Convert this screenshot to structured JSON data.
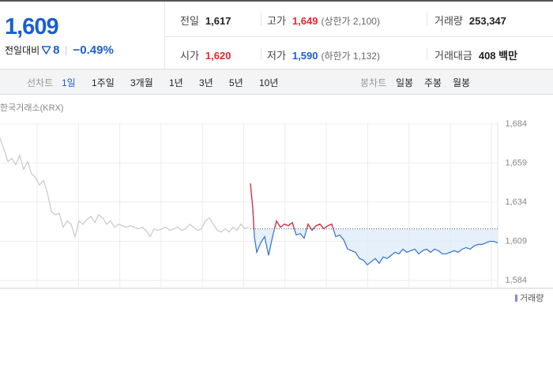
{
  "quote": {
    "price": "1,609",
    "change_label": "전일대비",
    "change": "8",
    "change_pct": "−0.49%"
  },
  "stats": [
    {
      "label": "전일",
      "value": "1,617"
    },
    {
      "label": "고가",
      "value": "1,649",
      "note": "(상한가 2,100)"
    },
    {
      "label": "거래량",
      "value": "253,347"
    },
    {
      "label": "시가",
      "value": "1,620"
    },
    {
      "label": "저가",
      "value": "1,590",
      "note": "(하한가 1,132)"
    },
    {
      "label": "거래대금",
      "value": "408 백만"
    }
  ],
  "tabs": {
    "label": "선차트",
    "items": [
      "1일",
      "1주일",
      "3개월",
      "1년",
      "3년",
      "5년",
      "10년"
    ]
  },
  "candle_tabs": {
    "label": "봉차트",
    "items": [
      "일봉",
      "주봉",
      "월봉"
    ]
  },
  "chart_data": {
    "type": "line",
    "source": "한국거래소(KRX)",
    "volume_label": "거래량",
    "xlim": [
      0,
      630
    ],
    "ylim": [
      1579,
      1685
    ],
    "yticks": [
      {
        "value": 1584,
        "label": "1,584"
      },
      {
        "value": 1609,
        "label": "1,609"
      },
      {
        "value": 1634,
        "label": "1,634"
      },
      {
        "value": 1659,
        "label": "1,659"
      },
      {
        "value": 1684,
        "label": "1,684"
      }
    ],
    "grid": true,
    "baseline": 1617,
    "series": [
      {
        "color": "#c8c8c8",
        "x": [
          0,
          5,
          10,
          15,
          20,
          25,
          30,
          35,
          40,
          45,
          50,
          55,
          60,
          65,
          70,
          75,
          80,
          85,
          90,
          95,
          100,
          105,
          110,
          115,
          120,
          125,
          130,
          135,
          140,
          145,
          150,
          155,
          160,
          165,
          170,
          175,
          180,
          185,
          190,
          195,
          200,
          205,
          210,
          215,
          220,
          225,
          230,
          235,
          240,
          245,
          250,
          255,
          260,
          265,
          270,
          275,
          280,
          285,
          290,
          295,
          300,
          305,
          310,
          315
        ],
        "values": [
          1675,
          1668,
          1660,
          1662,
          1658,
          1664,
          1655,
          1660,
          1652,
          1650,
          1645,
          1648,
          1640,
          1628,
          1626,
          1627,
          1618,
          1622,
          1620,
          1612,
          1622,
          1620,
          1623,
          1625,
          1621,
          1626,
          1624,
          1620,
          1622,
          1618,
          1620,
          1619,
          1618,
          1619,
          1618,
          1617,
          1618,
          1616,
          1612,
          1617,
          1616,
          1617,
          1618,
          1616,
          1617,
          1618,
          1616,
          1617,
          1620,
          1618,
          1616,
          1617,
          1622,
          1624,
          1620,
          1616,
          1615,
          1617,
          1615,
          1618,
          1616,
          1620,
          1617,
          1618
        ]
      },
      {
        "color": "#2f6fd6",
        "up_color": "#e3262f",
        "x": [
          317,
          320,
          322,
          325,
          330,
          335,
          340,
          345,
          350,
          355,
          360,
          365,
          370,
          375,
          380,
          385,
          390,
          395,
          400,
          405,
          410,
          415,
          420,
          425,
          430,
          435,
          440,
          445,
          450,
          455,
          460,
          465,
          470,
          475,
          480,
          485,
          490,
          495,
          500,
          505,
          510,
          515,
          520,
          525,
          530,
          535,
          540,
          545,
          550,
          555,
          560,
          565,
          570,
          575,
          580,
          585,
          590,
          595,
          600,
          605,
          610,
          615,
          620,
          625,
          630
        ],
        "values": [
          1646,
          1630,
          1612,
          1602,
          1608,
          1612,
          1600,
          1612,
          1622,
          1618,
          1620,
          1619,
          1621,
          1613,
          1614,
          1611,
          1620,
          1616,
          1619,
          1620,
          1617,
          1619,
          1620,
          1612,
          1613,
          1610,
          1604,
          1603,
          1602,
          1598,
          1597,
          1594,
          1596,
          1598,
          1595,
          1599,
          1598,
          1600,
          1602,
          1601,
          1604,
          1602,
          1603,
          1604,
          1601,
          1603,
          1604,
          1602,
          1604,
          1603,
          1601,
          1601,
          1602,
          1603,
          1602,
          1604,
          1605,
          1604,
          1606,
          1607,
          1607,
          1608,
          1609,
          1609,
          1608
        ]
      }
    ]
  }
}
